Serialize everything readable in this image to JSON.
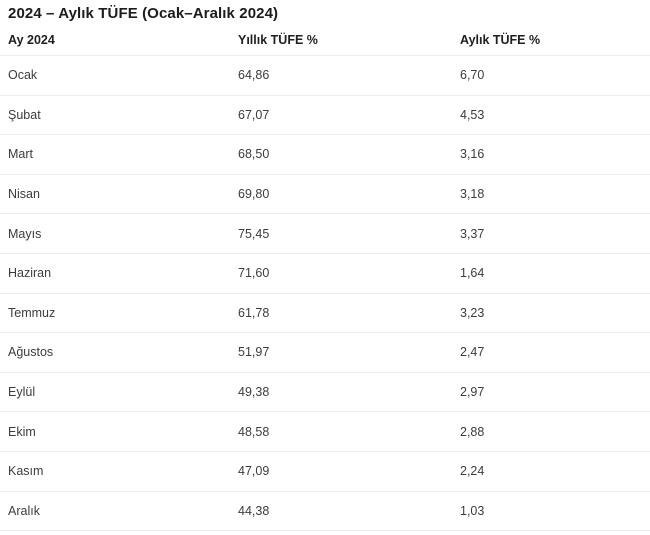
{
  "title": "2024 – Aylık TÜFE (Ocak–Aralık 2024)",
  "colors": {
    "background": "#ffffff",
    "title_text": "#1c1c1c",
    "header_text": "#1f1f1f",
    "row_text": "#3c3c3c",
    "divider": "#ededed"
  },
  "table": {
    "headers": [
      "Ay 2024",
      "Yıllık TÜFE %",
      "Aylık TÜFE %"
    ],
    "rows": [
      {
        "month": "Ocak",
        "yearly": "64,86",
        "monthly": "6,70"
      },
      {
        "month": "Şubat",
        "yearly": "67,07",
        "monthly": "4,53"
      },
      {
        "month": "Mart",
        "yearly": "68,50",
        "monthly": "3,16"
      },
      {
        "month": "Nisan",
        "yearly": "69,80",
        "monthly": "3,18"
      },
      {
        "month": "Mayıs",
        "yearly": "75,45",
        "monthly": "3,37"
      },
      {
        "month": "Haziran",
        "yearly": "71,60",
        "monthly": "1,64"
      },
      {
        "month": "Temmuz",
        "yearly": "61,78",
        "monthly": "3,23"
      },
      {
        "month": "Ağustos",
        "yearly": "51,97",
        "monthly": "2,47"
      },
      {
        "month": "Eylül",
        "yearly": "49,38",
        "monthly": "2,97"
      },
      {
        "month": "Ekim",
        "yearly": "48,58",
        "monthly": "2,88"
      },
      {
        "month": "Kasım",
        "yearly": "47,09",
        "monthly": "2,24"
      },
      {
        "month": "Aralık",
        "yearly": "44,38",
        "monthly": "1,03"
      }
    ]
  },
  "chart_data": {
    "type": "table",
    "title": "2024 – Aylık TÜFE (Ocak–Aralık 2024)",
    "columns": [
      "Ay 2024",
      "Yıllık TÜFE %",
      "Aylık TÜFE %"
    ],
    "categories": [
      "Ocak",
      "Şubat",
      "Mart",
      "Nisan",
      "Mayıs",
      "Haziran",
      "Temmuz",
      "Ağustos",
      "Eylül",
      "Ekim",
      "Kasım",
      "Aralık"
    ],
    "series": [
      {
        "name": "Yıllık TÜFE %",
        "values": [
          64.86,
          67.07,
          68.5,
          69.8,
          75.45,
          71.6,
          61.78,
          51.97,
          49.38,
          48.58,
          47.09,
          44.38
        ]
      },
      {
        "name": "Aylık TÜFE %",
        "values": [
          6.7,
          4.53,
          3.16,
          3.18,
          3.37,
          1.64,
          3.23,
          2.47,
          2.97,
          2.88,
          2.24,
          1.03
        ]
      }
    ]
  }
}
